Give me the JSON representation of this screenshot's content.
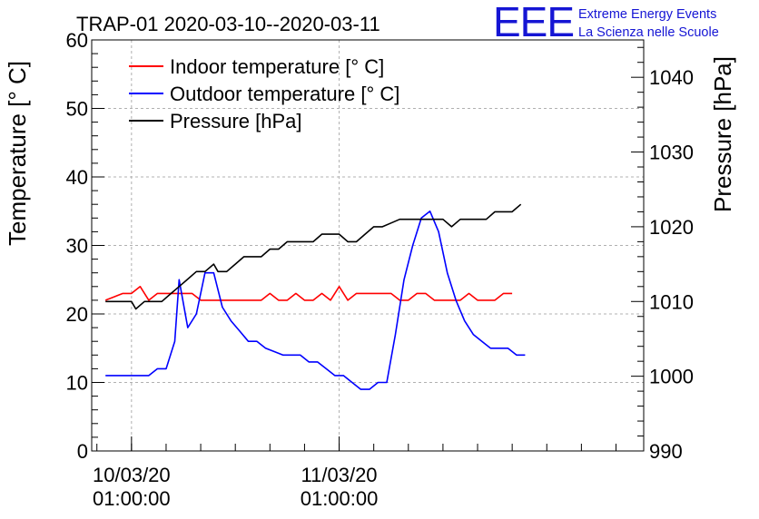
{
  "chart_data": {
    "type": "line",
    "title": "TRAP-01 2020-03-10--2020-03-11",
    "ylabel": "Temperature [° C]",
    "y2label": "Pressure [hPa]",
    "ylim": [
      0,
      60
    ],
    "y2lim": [
      990,
      1045
    ],
    "yticks": [
      0,
      10,
      20,
      30,
      40,
      50,
      60
    ],
    "y2ticks": [
      990,
      1000,
      1010,
      1020,
      1030,
      1040
    ],
    "x_unit": "hours since 2020-03-10 00:00",
    "xlim": [
      -3.6,
      60.2
    ],
    "xticks": [
      {
        "x": 1,
        "date": "10/03/20",
        "time": "01:00:00"
      },
      {
        "x": 25,
        "date": "11/03/20",
        "time": "01:00:00"
      }
    ],
    "grid": true,
    "legend_position": "top-left",
    "series": [
      {
        "name": "Indoor temperature [° C]",
        "axis": "left",
        "color": "#ff0000",
        "points": [
          [
            -2,
            22
          ],
          [
            -1,
            22.5
          ],
          [
            0,
            23
          ],
          [
            1,
            23
          ],
          [
            2,
            24
          ],
          [
            3,
            22
          ],
          [
            4,
            23
          ],
          [
            5,
            23
          ],
          [
            6,
            23
          ],
          [
            7,
            23
          ],
          [
            8,
            23
          ],
          [
            9,
            22
          ],
          [
            10,
            22
          ],
          [
            11,
            22
          ],
          [
            12,
            22
          ],
          [
            13,
            22
          ],
          [
            14,
            22
          ],
          [
            15,
            22
          ],
          [
            16,
            22
          ],
          [
            17,
            23
          ],
          [
            18,
            22
          ],
          [
            19,
            22
          ],
          [
            20,
            23
          ],
          [
            21,
            22
          ],
          [
            22,
            22
          ],
          [
            23,
            23
          ],
          [
            24,
            22
          ],
          [
            25,
            24
          ],
          [
            26,
            22
          ],
          [
            27,
            23
          ],
          [
            28,
            23
          ],
          [
            29,
            23
          ],
          [
            30,
            23
          ],
          [
            31,
            23
          ],
          [
            32,
            22
          ],
          [
            33,
            22
          ],
          [
            34,
            23
          ],
          [
            35,
            23
          ],
          [
            36,
            22
          ],
          [
            37,
            22
          ],
          [
            38,
            22
          ],
          [
            39,
            22
          ],
          [
            40,
            23
          ],
          [
            41,
            22
          ],
          [
            42,
            22
          ],
          [
            43,
            22
          ],
          [
            44,
            23
          ],
          [
            45,
            23
          ]
        ]
      },
      {
        "name": "Outdoor temperature [° C]",
        "axis": "left",
        "color": "#0000ff",
        "points": [
          [
            -2,
            11
          ],
          [
            -1,
            11
          ],
          [
            0,
            11
          ],
          [
            1,
            11
          ],
          [
            2,
            11
          ],
          [
            3,
            11
          ],
          [
            4,
            12
          ],
          [
            5,
            12
          ],
          [
            6,
            16
          ],
          [
            6.5,
            25
          ],
          [
            7.5,
            18
          ],
          [
            8.5,
            20
          ],
          [
            9.5,
            26
          ],
          [
            10.5,
            26
          ],
          [
            11.5,
            21
          ],
          [
            12.5,
            19
          ],
          [
            13.5,
            17.5
          ],
          [
            14.5,
            16
          ],
          [
            15.5,
            16
          ],
          [
            16.5,
            15
          ],
          [
            17.5,
            14.5
          ],
          [
            18.5,
            14
          ],
          [
            19.5,
            14
          ],
          [
            20.5,
            14
          ],
          [
            21.5,
            13
          ],
          [
            22.5,
            13
          ],
          [
            23.5,
            12
          ],
          [
            24.5,
            11
          ],
          [
            25.5,
            11
          ],
          [
            26.5,
            10
          ],
          [
            27.5,
            9
          ],
          [
            28.5,
            9
          ],
          [
            29.5,
            10
          ],
          [
            30.5,
            10
          ],
          [
            31.5,
            17
          ],
          [
            32.5,
            25
          ],
          [
            33.5,
            30
          ],
          [
            34.5,
            34
          ],
          [
            35.5,
            35
          ],
          [
            36.5,
            32
          ],
          [
            37.5,
            26
          ],
          [
            38.5,
            22
          ],
          [
            39.5,
            19
          ],
          [
            40.5,
            17
          ],
          [
            41.5,
            16
          ],
          [
            42.5,
            15
          ],
          [
            43.5,
            15
          ],
          [
            44.5,
            15
          ],
          [
            45.5,
            14
          ],
          [
            46.5,
            14
          ]
        ]
      },
      {
        "name": "Pressure [hPa]",
        "axis": "right",
        "color": "#000000",
        "points": [
          [
            -2,
            1010
          ],
          [
            -1,
            1010
          ],
          [
            0,
            1010
          ],
          [
            1,
            1010
          ],
          [
            1.5,
            1009
          ],
          [
            2.5,
            1010
          ],
          [
            3.5,
            1010
          ],
          [
            4.5,
            1010
          ],
          [
            5.5,
            1011
          ],
          [
            6.5,
            1012
          ],
          [
            7.5,
            1013
          ],
          [
            8.5,
            1014
          ],
          [
            9.5,
            1014
          ],
          [
            10.5,
            1015
          ],
          [
            11,
            1014
          ],
          [
            12,
            1014
          ],
          [
            13,
            1015
          ],
          [
            14,
            1016
          ],
          [
            15,
            1016
          ],
          [
            16,
            1016
          ],
          [
            17,
            1017
          ],
          [
            18,
            1017
          ],
          [
            19,
            1018
          ],
          [
            20,
            1018
          ],
          [
            21,
            1018
          ],
          [
            22,
            1018
          ],
          [
            23,
            1019
          ],
          [
            24,
            1019
          ],
          [
            25,
            1019
          ],
          [
            26,
            1018
          ],
          [
            27,
            1018
          ],
          [
            28,
            1019
          ],
          [
            29,
            1020
          ],
          [
            30,
            1020
          ],
          [
            31,
            1020.5
          ],
          [
            32,
            1021
          ],
          [
            33,
            1021
          ],
          [
            34,
            1021
          ],
          [
            35,
            1021
          ],
          [
            36,
            1021
          ],
          [
            37,
            1021
          ],
          [
            38,
            1020
          ],
          [
            39,
            1021
          ],
          [
            40,
            1021
          ],
          [
            41,
            1021
          ],
          [
            42,
            1021
          ],
          [
            43,
            1022
          ],
          [
            44,
            1022
          ],
          [
            45,
            1022
          ],
          [
            46,
            1023
          ]
        ]
      }
    ],
    "logo": {
      "mark": "EEE",
      "line1": "Extreme Energy Events",
      "line2": "La Scienza nelle Scuole",
      "color": "#1515d4"
    }
  }
}
